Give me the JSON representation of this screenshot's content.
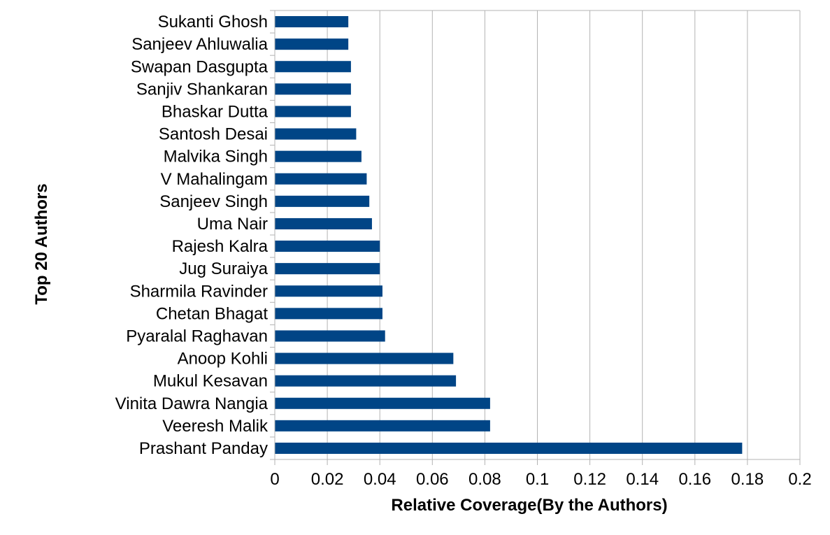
{
  "chart_data": {
    "type": "bar",
    "orientation": "horizontal",
    "title": "",
    "xlabel": "Relative Coverage(By the Authors)",
    "ylabel": "Top 20 Authors",
    "xlim": [
      0,
      0.2
    ],
    "xticks": [
      0,
      0.02,
      0.04,
      0.06,
      0.08,
      0.1,
      0.12,
      0.14,
      0.16,
      0.18,
      0.2
    ],
    "xtick_labels": [
      "0",
      "0.02",
      "0.04",
      "0.06",
      "0.08",
      "0.1",
      "0.12",
      "0.14",
      "0.16",
      "0.18",
      "0.2"
    ],
    "grid": "vertical",
    "legend": "none",
    "bar_color": "#004586",
    "categories": [
      "Prashant Panday",
      "Veeresh Malik",
      "Vinita Dawra Nangia",
      "Mukul Kesavan",
      "Anoop Kohli",
      "Pyaralal Raghavan",
      "Chetan Bhagat",
      "Sharmila Ravinder",
      "Jug Suraiya",
      "Rajesh Kalra",
      "Uma Nair",
      "Sanjeev Singh",
      "V Mahalingam",
      "Malvika Singh",
      "Santosh Desai",
      "Bhaskar Dutta",
      "Sanjiv Shankaran",
      "Swapan Dasgupta",
      "Sanjeev Ahluwalia",
      "Sukanti Ghosh"
    ],
    "values": [
      0.178,
      0.082,
      0.082,
      0.069,
      0.068,
      0.042,
      0.041,
      0.041,
      0.04,
      0.04,
      0.037,
      0.036,
      0.035,
      0.033,
      0.031,
      0.029,
      0.029,
      0.029,
      0.028,
      0.028
    ]
  }
}
